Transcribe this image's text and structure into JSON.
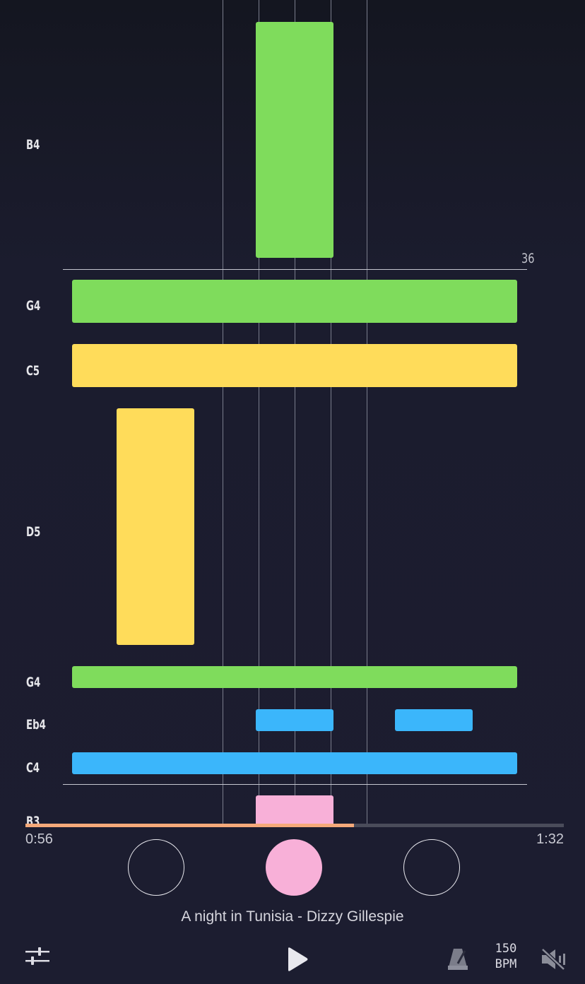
{
  "piano_roll": {
    "note_labels": [
      "B4",
      "G4",
      "C5",
      "D5",
      "G4",
      "Eb4",
      "C4",
      "B3"
    ],
    "measure_number": "36",
    "colors": {
      "green": "#7fdc5c",
      "yellow": "#ffdc5a",
      "blue": "#3bb6fb",
      "pink": "#f8b0d8",
      "progress": "#f5a97a"
    }
  },
  "playback": {
    "elapsed": "0:56",
    "total": "1:32",
    "progress_fraction": 0.61
  },
  "song": {
    "title": "A night in Tunisia - Dizzy Gillespie"
  },
  "controls": {
    "bpm_value": "150",
    "bpm_unit": "BPM",
    "icons": [
      "sliders-icon",
      "play-icon",
      "metronome-icon",
      "mute-icon"
    ]
  }
}
